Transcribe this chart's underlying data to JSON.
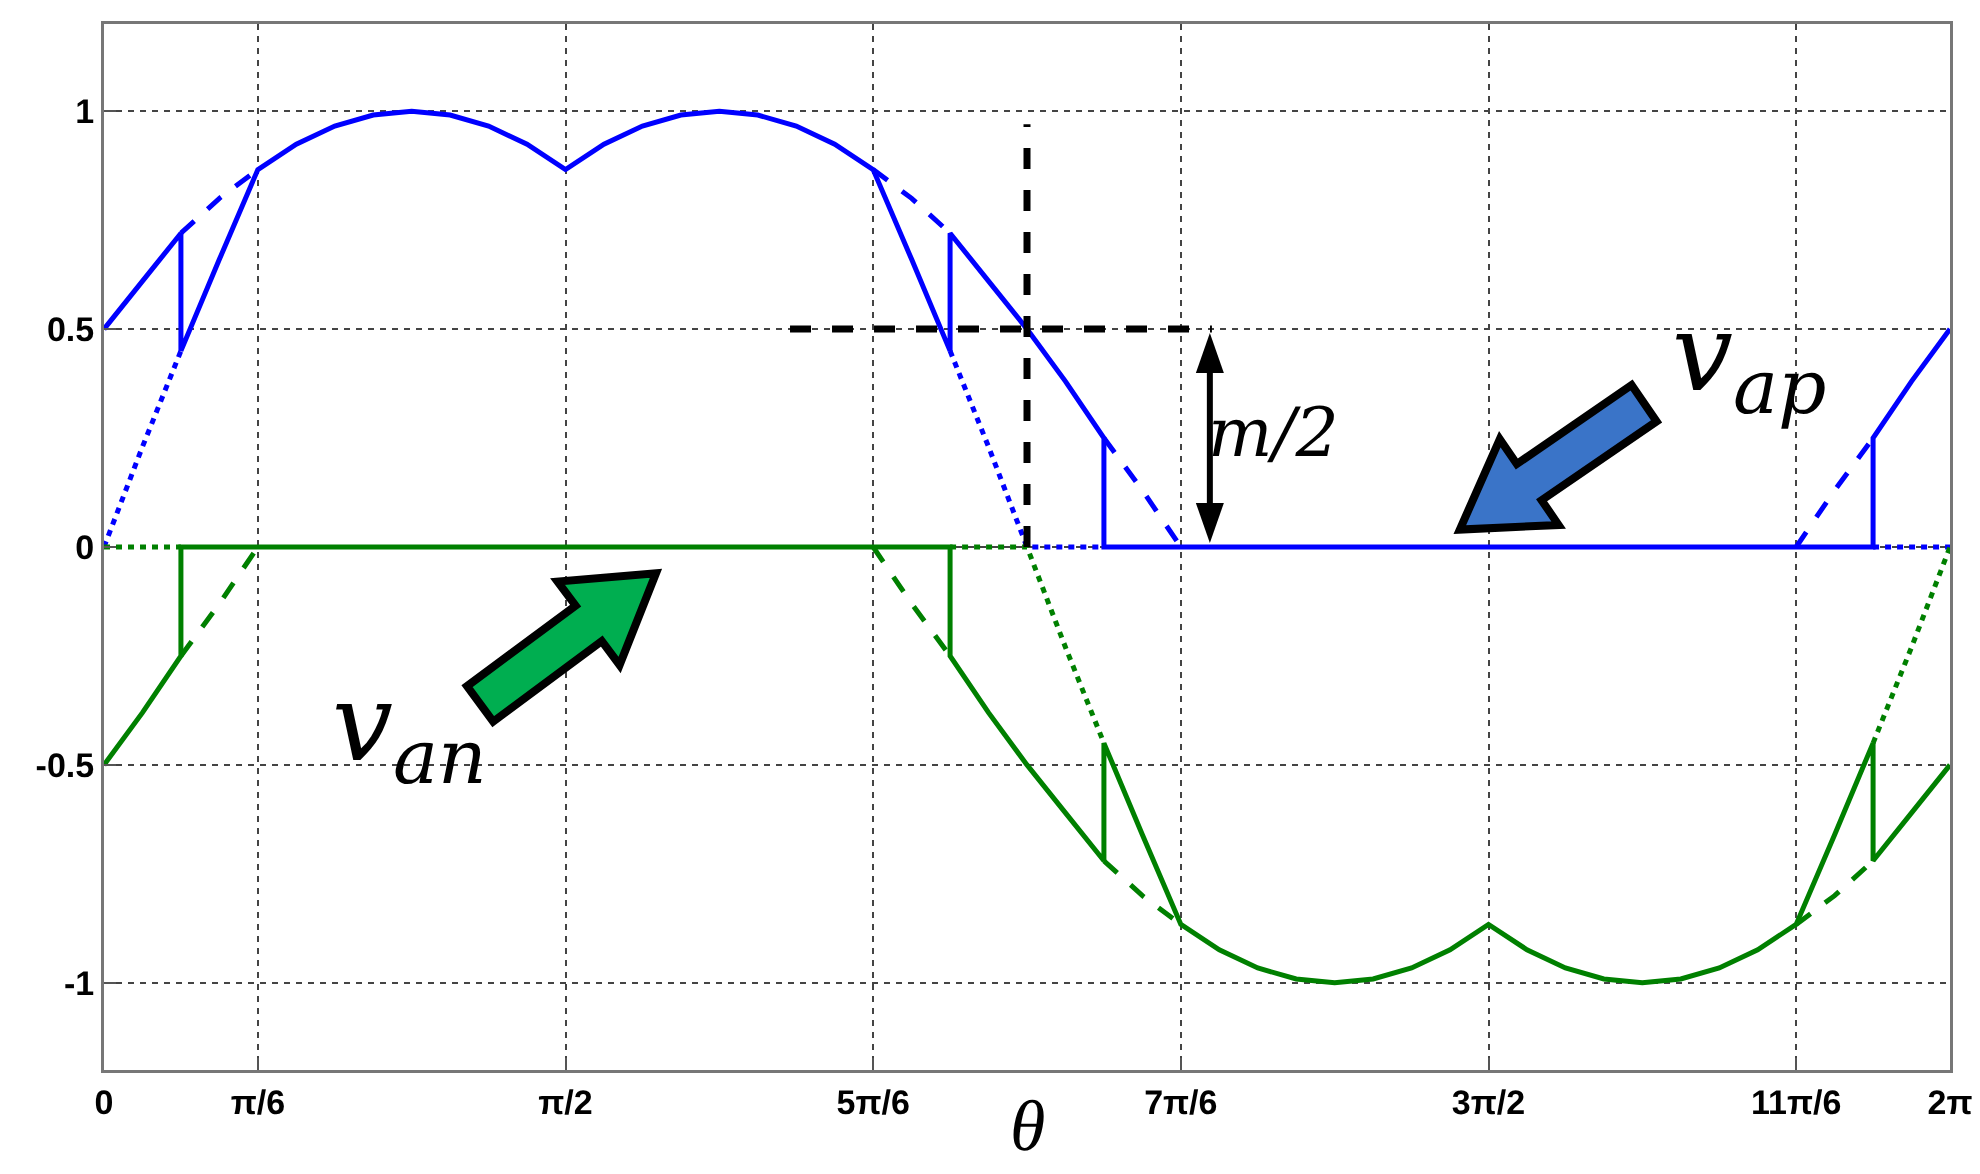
{
  "chart_data": {
    "type": "line",
    "xlabel": "θ",
    "xlim": [
      0,
      6.2832
    ],
    "ylim": [
      -1.2,
      1.2
    ],
    "xticks": [
      {
        "value": 0,
        "label": "0"
      },
      {
        "value": 0.5236,
        "label": "π/6"
      },
      {
        "value": 1.5708,
        "label": "π/2"
      },
      {
        "value": 2.618,
        "label": "5π/6"
      },
      {
        "value": 3.6652,
        "label": "7π/6"
      },
      {
        "value": 4.7124,
        "label": "3π/2"
      },
      {
        "value": 5.7596,
        "label": "11π/6"
      },
      {
        "value": 6.2832,
        "label": "2π"
      }
    ],
    "yticks": [
      -1,
      -0.5,
      0,
      0.5,
      1
    ],
    "grid": true,
    "marker": "none",
    "annotations": [
      "v$_{ap}$",
      "v$_{an}$",
      "m/2"
    ],
    "series": [
      {
        "color": "#0000ff",
        "line_style": "solid",
        "x": [
          0,
          0.1309,
          0.2618,
          0.2618,
          0.3927,
          0.5236,
          0.6545,
          0.7854,
          0.9163,
          1.0472,
          1.1781,
          1.309,
          1.4399,
          1.5708,
          1.7017,
          1.8326,
          1.9635,
          2.0944,
          2.2253,
          2.3562,
          2.4871,
          2.618,
          2.7489,
          2.8798,
          2.8798,
          3.0107,
          3.1416,
          3.2725,
          3.4034,
          3.4034,
          6.0214,
          6.0214,
          6.1523,
          6.2832
        ],
        "values": [
          0.5,
          0.61,
          0.72,
          0.45,
          0.66,
          0.866,
          0.924,
          0.966,
          0.991,
          1,
          0.991,
          0.966,
          0.924,
          0.866,
          0.924,
          0.966,
          0.991,
          1,
          0.991,
          0.966,
          0.924,
          0.866,
          0.66,
          0.45,
          0.72,
          0.61,
          0.5,
          0.38,
          0.25,
          0,
          0,
          0.25,
          0.38,
          0.5
        ]
      },
      {
        "color": "#0000ff",
        "line_style": "dashed",
        "x": [
          0.2618,
          0.3927,
          0.5236,
          null,
          2.618,
          2.7489,
          2.8798,
          null,
          3.4034,
          3.5343,
          3.6652,
          null,
          5.7596,
          5.8905,
          6.0214
        ],
        "values": [
          0.72,
          0.8,
          0.866,
          null,
          0.866,
          0.8,
          0.72,
          null,
          0.25,
          0.13,
          0,
          null,
          0,
          0.13,
          0.25
        ]
      },
      {
        "color": "#0000ff",
        "line_style": "dotted",
        "x": [
          0,
          0.1309,
          0.2618,
          null,
          2.8798,
          3.0107,
          3.1416,
          3.4034,
          null,
          6.0214,
          6.2832
        ],
        "values": [
          0,
          0.23,
          0.45,
          null,
          0.45,
          0.23,
          0,
          0,
          null,
          0,
          0
        ]
      },
      {
        "color": "#008000",
        "line_style": "solid",
        "x": [
          0,
          0.1309,
          0.2618,
          0.2618,
          2.8798,
          2.8798,
          3.0107,
          3.1416,
          3.2725,
          3.4034,
          3.4034,
          3.5343,
          3.6652,
          3.7961,
          3.927,
          4.0579,
          4.1888,
          4.3197,
          4.4506,
          4.5815,
          4.7124,
          4.8433,
          4.9742,
          5.1051,
          5.236,
          5.3669,
          5.4978,
          5.6287,
          5.7596,
          5.8905,
          6.0214,
          6.0214,
          6.1523,
          6.2832
        ],
        "values": [
          -0.5,
          -0.38,
          -0.25,
          0,
          0,
          -0.25,
          -0.38,
          -0.5,
          -0.61,
          -0.72,
          -0.45,
          -0.66,
          -0.866,
          -0.924,
          -0.966,
          -0.991,
          -1,
          -0.991,
          -0.966,
          -0.924,
          -0.866,
          -0.924,
          -0.966,
          -0.991,
          -1,
          -0.991,
          -0.966,
          -0.924,
          -0.866,
          -0.66,
          -0.45,
          -0.72,
          -0.61,
          -0.5
        ]
      },
      {
        "color": "#008000",
        "line_style": "dashed",
        "x": [
          0.2618,
          0.3927,
          0.5236,
          null,
          2.618,
          2.7489,
          2.8798,
          null,
          3.4034,
          3.5343,
          3.6652,
          null,
          5.7596,
          5.8905,
          6.0214
        ],
        "values": [
          -0.25,
          -0.13,
          0,
          null,
          0,
          -0.13,
          -0.25,
          null,
          -0.72,
          -0.8,
          -0.866,
          null,
          -0.866,
          -0.8,
          -0.72
        ]
      },
      {
        "color": "#008000",
        "line_style": "dotted",
        "x": [
          0,
          0.2618,
          null,
          2.8798,
          3.1416,
          3.2725,
          3.4034,
          null,
          6.0214,
          6.1523,
          6.2832
        ],
        "values": [
          0,
          0,
          null,
          0,
          0,
          -0.23,
          -0.45,
          null,
          -0.45,
          -0.23,
          0
        ]
      },
      {
        "color": "#000000",
        "line_style": "dashed",
        "x": [
          2.335,
          3.771
        ],
        "values": [
          0.5,
          0.5
        ]
      },
      {
        "color": "#000000",
        "line_style": "dashed",
        "x": [
          3.1416,
          3.1416
        ],
        "values": [
          0,
          0.97
        ]
      }
    ]
  }
}
